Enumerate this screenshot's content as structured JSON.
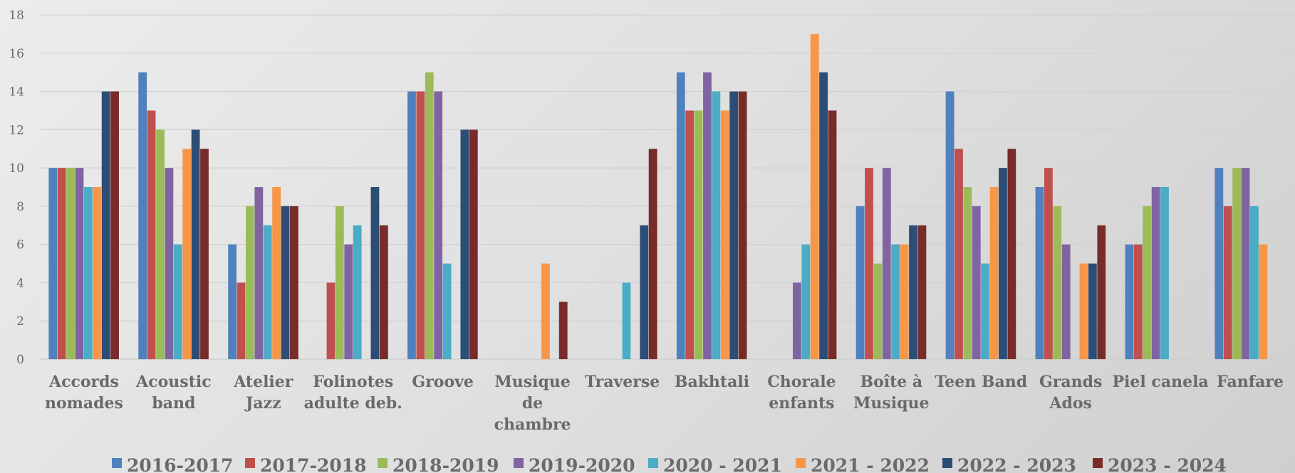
{
  "chart_data": {
    "type": "bar",
    "title": "",
    "xlabel": "",
    "ylabel": "",
    "ylim": [
      0,
      18
    ],
    "yticks": [
      0,
      2,
      4,
      6,
      8,
      10,
      12,
      14,
      16,
      18
    ],
    "grid": true,
    "legend_position": "bottom",
    "categories": [
      "Accords nomades",
      "Acoustic band",
      "Atelier Jazz",
      "Folinotes adulte deb.",
      "Groove",
      "Musique de chambre",
      "Traverse",
      "Bakhtali",
      "Chorale enfants",
      "Boîte à Musique",
      "Teen Band",
      "Grands Ados",
      "Piel canela",
      "Fanfare"
    ],
    "series": [
      {
        "name": "2016-2017",
        "color": "#4f81bd",
        "values": [
          10,
          15,
          6,
          null,
          14,
          null,
          null,
          15,
          null,
          8,
          14,
          9,
          6,
          10
        ]
      },
      {
        "name": "2017-2018",
        "color": "#c0504d",
        "values": [
          10,
          13,
          4,
          4,
          14,
          null,
          null,
          13,
          null,
          10,
          11,
          10,
          6,
          8
        ]
      },
      {
        "name": "2018-2019",
        "color": "#9bbb59",
        "values": [
          10,
          12,
          8,
          8,
          15,
          null,
          null,
          13,
          null,
          5,
          9,
          8,
          8,
          10
        ]
      },
      {
        "name": "2019-2020",
        "color": "#8064a2",
        "values": [
          10,
          10,
          9,
          6,
          14,
          null,
          null,
          15,
          4,
          10,
          8,
          6,
          9,
          10
        ]
      },
      {
        "name": "2020 - 2021",
        "color": "#4bacc6",
        "values": [
          9,
          6,
          7,
          7,
          5,
          null,
          4,
          14,
          6,
          6,
          5,
          null,
          9,
          8
        ]
      },
      {
        "name": "2021 - 2022",
        "color": "#f79646",
        "values": [
          9,
          11,
          9,
          null,
          null,
          5,
          null,
          13,
          17,
          6,
          9,
          5,
          null,
          6
        ]
      },
      {
        "name": "2022 - 2023",
        "color": "#2c4d75",
        "values": [
          14,
          12,
          8,
          9,
          12,
          null,
          7,
          14,
          15,
          7,
          10,
          5,
          null,
          null
        ]
      },
      {
        "name": "2023 - 2024",
        "color": "#772c2a",
        "values": [
          14,
          11,
          8,
          7,
          12,
          3,
          11,
          14,
          13,
          7,
          11,
          7,
          null,
          null
        ]
      }
    ]
  }
}
